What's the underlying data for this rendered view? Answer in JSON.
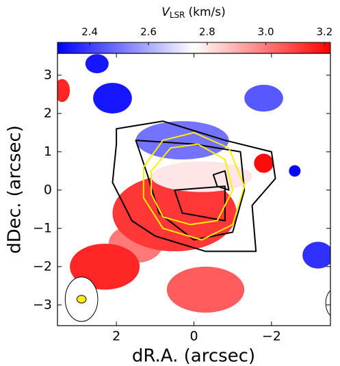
{
  "chart_data": {
    "type": "velocity-map",
    "colorbar_label": {
      "symbol": "V",
      "subscript": "LSR",
      "unit": "(km/s)"
    },
    "x_label": "dR.A. (arcsec)",
    "y_label": "dDec. (arcsec)",
    "colormap": "bwr",
    "clim": [
      2.29,
      3.22
    ],
    "cticks": [
      2.4,
      2.6,
      2.8,
      {
        "value": 3,
        "label": "3.0"
      },
      3.2
    ],
    "xlim": [
      3.52,
      -3.52
    ],
    "ylim": [
      -3.54,
      3.57
    ],
    "xticks": [
      2,
      0,
      {
        "value": -2,
        "label": "−2"
      }
    ],
    "yticks": [
      3,
      2,
      1,
      0,
      {
        "value": -1,
        "label": "−1"
      },
      {
        "value": -2,
        "label": "−2"
      },
      {
        "value": -3,
        "label": "−3"
      }
    ],
    "blobs": [
      {
        "x": 1.5,
        "y": -1.4,
        "rx": 0.7,
        "ry": 0.5,
        "v": 3.0
      },
      {
        "x": 0.5,
        "y": -0.6,
        "rx": 1.6,
        "ry": 1.0,
        "v": 3.12
      },
      {
        "x": 0.3,
        "y": 1.3,
        "rx": 1.2,
        "ry": 0.5,
        "v": 2.5
      },
      {
        "x": -0.2,
        "y": 0.35,
        "rx": 1.3,
        "ry": 0.4,
        "v": 2.8
      },
      {
        "x": 2.1,
        "y": 2.4,
        "rx": 0.5,
        "ry": 0.4,
        "v": 2.33
      },
      {
        "x": 2.5,
        "y": 3.3,
        "rx": 0.3,
        "ry": 0.25,
        "v": 2.33
      },
      {
        "x": -1.8,
        "y": 2.4,
        "rx": 0.5,
        "ry": 0.35,
        "v": 2.45
      },
      {
        "x": 3.4,
        "y": 2.6,
        "rx": 0.2,
        "ry": 0.3,
        "v": 3.15
      },
      {
        "x": 2.3,
        "y": -2.0,
        "rx": 0.9,
        "ry": 0.6,
        "v": 3.15
      },
      {
        "x": -0.3,
        "y": -2.6,
        "rx": 1.0,
        "ry": 0.6,
        "v": 3.05
      },
      {
        "x": -3.2,
        "y": -1.7,
        "rx": 0.4,
        "ry": 0.35,
        "v": 2.38
      },
      {
        "x": -1.8,
        "y": 0.7,
        "rx": 0.25,
        "ry": 0.25,
        "v": 3.2
      },
      {
        "x": -2.6,
        "y": 0.5,
        "rx": 0.15,
        "ry": 0.15,
        "v": 2.3
      }
    ],
    "contours": [
      {
        "color": "#000000",
        "x": [
          2.0,
          0.8,
          -0.8,
          -2.0,
          -2.1,
          -1.5,
          -1.6,
          -0.3,
          1.0,
          1.6,
          2.1,
          2.0
        ],
        "y": [
          1.6,
          1.8,
          1.3,
          1.0,
          0.3,
          -0.4,
          -1.6,
          -1.6,
          -1.2,
          -0.8,
          0.2,
          1.2
        ]
      },
      {
        "color": "#000000",
        "x": [
          1.5,
          0.0,
          -1.2,
          -1.3,
          -1.0,
          0.0,
          0.9,
          1.2
        ],
        "y": [
          1.3,
          1.2,
          1.0,
          0.0,
          -1.1,
          -1.3,
          -0.6,
          0.4
        ]
      },
      {
        "color": "#000000",
        "x": [
          0.5,
          -0.8,
          -0.8,
          0.3
        ],
        "y": [
          0.0,
          0.1,
          -0.8,
          -0.6
        ]
      },
      {
        "color": "#000000",
        "x": [
          -0.5,
          -0.8,
          -0.9,
          -0.6
        ],
        "y": [
          0.4,
          0.5,
          0.0,
          0.1
        ]
      },
      {
        "color": "#ffee00",
        "x": [
          1.3,
          0.8,
          0.0,
          -0.9,
          -1.3,
          -1.0,
          -0.2,
          0.8,
          1.3
        ],
        "y": [
          0.6,
          1.3,
          1.5,
          1.1,
          0.1,
          -0.9,
          -1.3,
          -1.0,
          -0.2
        ]
      },
      {
        "color": "#ffee00",
        "x": [
          1.1,
          0.6,
          -0.1,
          -0.8,
          -1.0,
          -0.6,
          0.1,
          0.8,
          1.1
        ],
        "y": [
          0.5,
          1.1,
          1.2,
          0.8,
          0.0,
          -0.8,
          -0.9,
          -0.7,
          -0.1
        ]
      }
    ],
    "beams": [
      {
        "x": 2.9,
        "y": -2.85,
        "rx": 0.42,
        "ry": 0.58,
        "fill": "#ffffff"
      },
      {
        "x": 2.9,
        "y": -2.85,
        "rx": 0.12,
        "ry": 0.1,
        "fill": "#ffee00"
      },
      {
        "x": -3.6,
        "y": -2.95,
        "rx": 0.2,
        "ry": 0.35,
        "fill": "#ffffff"
      }
    ]
  }
}
